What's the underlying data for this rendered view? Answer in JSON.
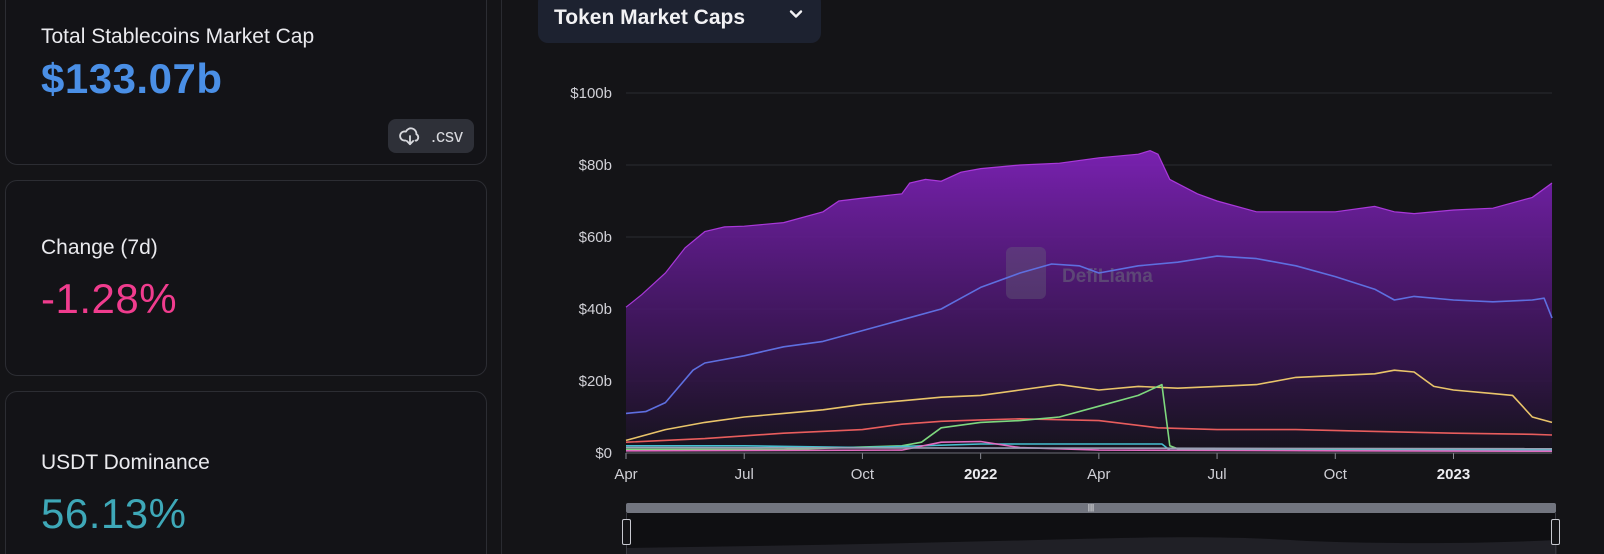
{
  "summary": {
    "market_cap": {
      "label": "Total Stablecoins Market Cap",
      "value": "$133.07b",
      "color": "#4a8fe6"
    },
    "csv_button": {
      "label": ".csv",
      "icon": "download-cloud-icon"
    },
    "change": {
      "label": "Change (7d)",
      "value": "-1.28%",
      "color": "#f03c8e"
    },
    "dominance": {
      "label": "USDT Dominance",
      "value": "56.13%",
      "color": "#3ea8b8"
    }
  },
  "chart_selector": {
    "label": "Token Market Caps",
    "icon": "chevron-down-icon"
  },
  "watermark": "DefiLlama",
  "chart_data": {
    "type": "area",
    "title": "",
    "xlabel": "",
    "ylabel": "",
    "ylim": [
      0,
      100
    ],
    "y_unit": "billion USD",
    "y_ticks": [
      "$0",
      "$20b",
      "$40b",
      "$60b",
      "$80b",
      "$100b"
    ],
    "x_ticks": [
      {
        "label": "Apr",
        "t": 0,
        "bold": false
      },
      {
        "label": "Jul",
        "t": 3,
        "bold": false
      },
      {
        "label": "Oct",
        "t": 6,
        "bold": false
      },
      {
        "label": "2022",
        "t": 9,
        "bold": true
      },
      {
        "label": "Apr",
        "t": 12,
        "bold": false
      },
      {
        "label": "Jul",
        "t": 15,
        "bold": false
      },
      {
        "label": "Oct",
        "t": 18,
        "bold": false
      },
      {
        "label": "2023",
        "t": 21,
        "bold": true
      }
    ],
    "x_range": [
      0,
      23.5
    ],
    "grid": true,
    "legend": "none",
    "series": [
      {
        "style": "area",
        "color": "#b53ce8",
        "points": [
          [
            0,
            40.5
          ],
          [
            0.4,
            44
          ],
          [
            1,
            50
          ],
          [
            1.5,
            57
          ],
          [
            2,
            61.5
          ],
          [
            2.5,
            62.8
          ],
          [
            3,
            63
          ],
          [
            4,
            64
          ],
          [
            5,
            67
          ],
          [
            5.4,
            70
          ],
          [
            6,
            70.8
          ],
          [
            7,
            72
          ],
          [
            7.2,
            75
          ],
          [
            7.6,
            76
          ],
          [
            8,
            75.5
          ],
          [
            8.5,
            78
          ],
          [
            9,
            79
          ],
          [
            10,
            80
          ],
          [
            11,
            80.5
          ],
          [
            12,
            82
          ],
          [
            13,
            83
          ],
          [
            13.3,
            84
          ],
          [
            13.5,
            83
          ],
          [
            13.8,
            76
          ],
          [
            14.5,
            72
          ],
          [
            15,
            70
          ],
          [
            16,
            67
          ],
          [
            17,
            67
          ],
          [
            18,
            67
          ],
          [
            19,
            68.5
          ],
          [
            19.5,
            67
          ],
          [
            20,
            66.5
          ],
          [
            21,
            67.5
          ],
          [
            22,
            68
          ],
          [
            23,
            71
          ],
          [
            23.5,
            75
          ]
        ]
      },
      {
        "style": "line",
        "color": "#5e6fe0",
        "points": [
          [
            0,
            11
          ],
          [
            0.5,
            11.5
          ],
          [
            1,
            14
          ],
          [
            1.7,
            23
          ],
          [
            2,
            25
          ],
          [
            3,
            27
          ],
          [
            4,
            29.5
          ],
          [
            5,
            31
          ],
          [
            6,
            34
          ],
          [
            7,
            37
          ],
          [
            8,
            40
          ],
          [
            8.5,
            43
          ],
          [
            9,
            46
          ],
          [
            10,
            50
          ],
          [
            10.8,
            52.5
          ],
          [
            11.5,
            52
          ],
          [
            12,
            50
          ],
          [
            13,
            52
          ],
          [
            14,
            53
          ],
          [
            15,
            54.7
          ],
          [
            16,
            54
          ],
          [
            17,
            52
          ],
          [
            18,
            49
          ],
          [
            19,
            45.5
          ],
          [
            19.5,
            42.5
          ],
          [
            20,
            43.5
          ],
          [
            21,
            42.5
          ],
          [
            22,
            42
          ],
          [
            23,
            42.5
          ],
          [
            23.3,
            43
          ],
          [
            23.5,
            37.5
          ]
        ]
      },
      {
        "style": "line",
        "color": "#e9c46a",
        "points": [
          [
            0,
            3.5
          ],
          [
            1,
            6.5
          ],
          [
            2,
            8.5
          ],
          [
            3,
            10
          ],
          [
            4,
            11
          ],
          [
            5,
            12
          ],
          [
            6,
            13.5
          ],
          [
            7,
            14.5
          ],
          [
            8,
            15.5
          ],
          [
            9,
            16
          ],
          [
            10,
            17.5
          ],
          [
            11,
            19
          ],
          [
            12,
            17.5
          ],
          [
            13,
            18.5
          ],
          [
            14,
            18
          ],
          [
            15,
            18.5
          ],
          [
            16,
            19
          ],
          [
            17,
            21
          ],
          [
            18,
            21.5
          ],
          [
            19,
            22
          ],
          [
            19.5,
            23
          ],
          [
            20,
            22.5
          ],
          [
            20.5,
            18.5
          ],
          [
            21,
            17.5
          ],
          [
            22,
            16.5
          ],
          [
            22.5,
            16
          ],
          [
            23,
            10
          ],
          [
            23.5,
            8.5
          ]
        ]
      },
      {
        "style": "line",
        "color": "#e85d5d",
        "points": [
          [
            0,
            3
          ],
          [
            2,
            4
          ],
          [
            4,
            5.5
          ],
          [
            6,
            6.5
          ],
          [
            7,
            8
          ],
          [
            8,
            8.8
          ],
          [
            9,
            9.2
          ],
          [
            10,
            9.5
          ],
          [
            12,
            9
          ],
          [
            13.5,
            7
          ],
          [
            15,
            6.5
          ],
          [
            17,
            6.5
          ],
          [
            19,
            6
          ],
          [
            21,
            5.5
          ],
          [
            23,
            5.2
          ],
          [
            23.5,
            5
          ]
        ]
      },
      {
        "style": "line",
        "color": "#7ed87e",
        "points": [
          [
            0,
            1
          ],
          [
            4,
            1
          ],
          [
            7,
            2
          ],
          [
            7.5,
            3
          ],
          [
            8,
            7
          ],
          [
            9,
            8.5
          ],
          [
            10,
            9
          ],
          [
            11,
            10
          ],
          [
            12,
            13
          ],
          [
            13,
            16
          ],
          [
            13.4,
            18
          ],
          [
            13.6,
            19
          ],
          [
            13.8,
            2
          ],
          [
            14,
            1.2
          ],
          [
            23.5,
            1
          ]
        ]
      },
      {
        "style": "line",
        "color": "#46c0d0",
        "points": [
          [
            0,
            2
          ],
          [
            3,
            2
          ],
          [
            6,
            1.5
          ],
          [
            9,
            2.5
          ],
          [
            12,
            2.5
          ],
          [
            13.6,
            2.5
          ],
          [
            13.8,
            0.8
          ],
          [
            23.5,
            0.8
          ]
        ]
      },
      {
        "style": "line",
        "color": "#e06cc0",
        "points": [
          [
            0,
            0.6
          ],
          [
            7,
            0.8
          ],
          [
            8,
            3
          ],
          [
            9,
            3.2
          ],
          [
            10,
            1.5
          ],
          [
            12,
            0.8
          ],
          [
            18,
            0.6
          ],
          [
            23.5,
            0.5
          ]
        ]
      },
      {
        "style": "line",
        "color": "#9aa0b5",
        "points": [
          [
            0,
            1.5
          ],
          [
            23.5,
            1.2
          ]
        ]
      }
    ]
  }
}
